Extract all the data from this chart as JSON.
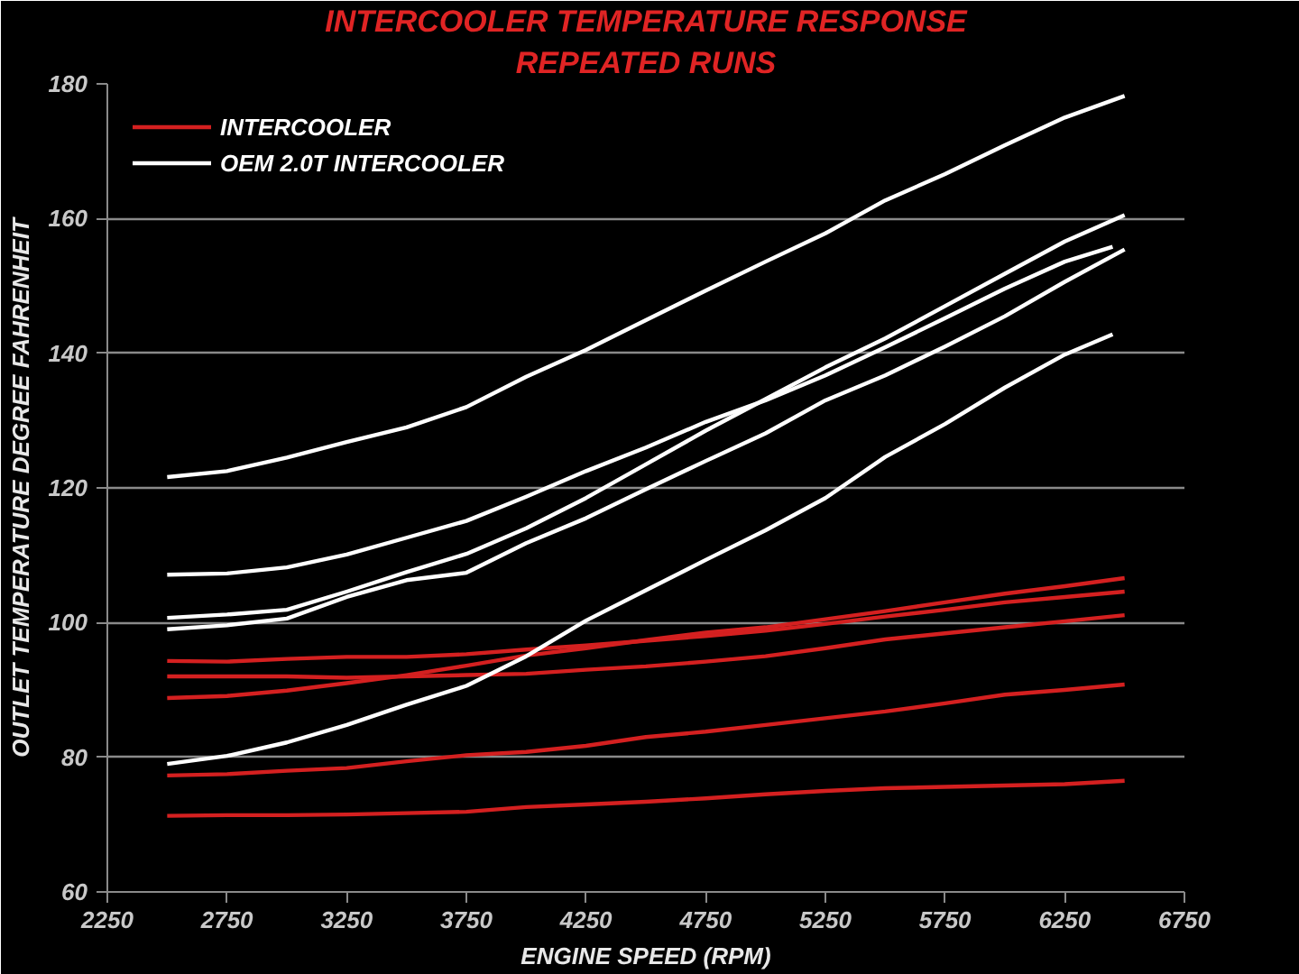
{
  "chart_data": {
    "type": "line",
    "title": "INTERCOOLER TEMPERATURE RESPONSE",
    "subtitle": "REPEATED RUNS",
    "xlabel": "ENGINE SPEED (RPM)",
    "ylabel": "OUTLET TEMPERATURE DEGREE FAHRENHEIT",
    "x": [
      2500,
      2750,
      3000,
      3250,
      3500,
      3750,
      4000,
      4250,
      4500,
      4750,
      5000,
      5250,
      5500,
      5750,
      6000,
      6250,
      6500
    ],
    "series": [
      {
        "name": "INTERCOOLER",
        "color": "#d42020",
        "values": [
          94.3,
          94.2,
          94.6,
          94.9,
          94.9,
          95.3,
          96.0,
          96.6,
          97.3,
          98.0,
          98.8,
          99.8,
          100.9,
          101.9,
          103.0,
          103.8,
          104.6
        ]
      },
      {
        "color": "#d42020",
        "values": [
          92.0,
          92.0,
          92.0,
          91.8,
          92.0,
          92.2,
          92.4,
          93.0,
          93.5,
          94.2,
          95.0,
          96.2,
          97.5,
          98.4,
          99.3,
          100.2,
          101.1
        ]
      },
      {
        "color": "#d42020",
        "values": [
          88.8,
          89.1,
          89.9,
          91.0,
          92.2,
          93.6,
          95.1,
          96.2,
          97.4,
          98.5,
          99.3,
          100.5,
          101.7,
          103.0,
          104.3,
          105.4,
          106.6
        ]
      },
      {
        "color": "#d42020",
        "values": [
          77.3,
          77.5,
          78.0,
          78.4,
          79.4,
          80.3,
          80.8,
          81.7,
          83.0,
          83.8,
          84.8,
          85.8,
          86.8,
          88.0,
          89.3,
          90.0,
          90.8
        ]
      },
      {
        "color": "#d42020",
        "values": [
          71.3,
          71.4,
          71.4,
          71.5,
          71.7,
          71.9,
          72.6,
          73.0,
          73.4,
          73.9,
          74.5,
          75.0,
          75.4,
          75.6,
          75.8,
          76.0,
          76.5
        ]
      },
      {
        "name": "OEM 2.0T INTERCOOLER",
        "color": "#ffffff",
        "values": [
          121.6,
          122.5,
          124.5,
          126.8,
          129.0,
          132.0,
          136.5,
          140.5,
          144.9,
          149.3,
          153.6,
          157.8,
          162.7,
          166.6,
          170.9,
          175.0,
          178.2
        ]
      },
      {
        "color": "#ffffff",
        "x": [
          2500,
          2750,
          3000,
          3250,
          3500,
          3750,
          4000,
          4250,
          4500,
          4750,
          5000,
          5250,
          5500,
          5750,
          6000,
          6250,
          6450
        ],
        "values": [
          107.1,
          107.3,
          108.2,
          110.1,
          112.6,
          115.1,
          118.7,
          122.5,
          126.0,
          129.8,
          133.0,
          136.7,
          140.9,
          145.2,
          149.6,
          153.6,
          155.8
        ]
      },
      {
        "color": "#ffffff",
        "values": [
          100.7,
          101.2,
          101.9,
          104.6,
          107.5,
          110.2,
          114.0,
          118.5,
          123.5,
          128.5,
          133.2,
          137.9,
          142.2,
          147.0,
          151.8,
          156.6,
          160.5
        ]
      },
      {
        "color": "#ffffff",
        "values": [
          99.0,
          99.6,
          100.6,
          103.8,
          106.3,
          107.4,
          111.8,
          115.5,
          119.8,
          124.0,
          128.1,
          133.0,
          136.7,
          141.0,
          145.5,
          150.6,
          155.4
        ]
      },
      {
        "color": "#ffffff",
        "x": [
          2500,
          2750,
          3000,
          3250,
          3500,
          3750,
          4000,
          4250,
          4500,
          4750,
          5000,
          5250,
          5500,
          5750,
          6000,
          6250,
          6450
        ],
        "values": [
          79.0,
          80.2,
          82.2,
          84.8,
          87.8,
          90.6,
          95.0,
          100.3,
          104.8,
          109.3,
          113.7,
          118.5,
          124.6,
          129.5,
          134.9,
          139.8,
          142.8
        ]
      }
    ],
    "xlim": [
      2250,
      6750
    ],
    "ylim": [
      60,
      180
    ],
    "xticks": [
      2250,
      2750,
      3250,
      3750,
      4250,
      4750,
      5250,
      5750,
      6250,
      6750
    ],
    "yticks": [
      60,
      80,
      100,
      120,
      140,
      160,
      180
    ],
    "grid": "y",
    "legend": "top left",
    "line_style": "solid",
    "marker": "none"
  }
}
